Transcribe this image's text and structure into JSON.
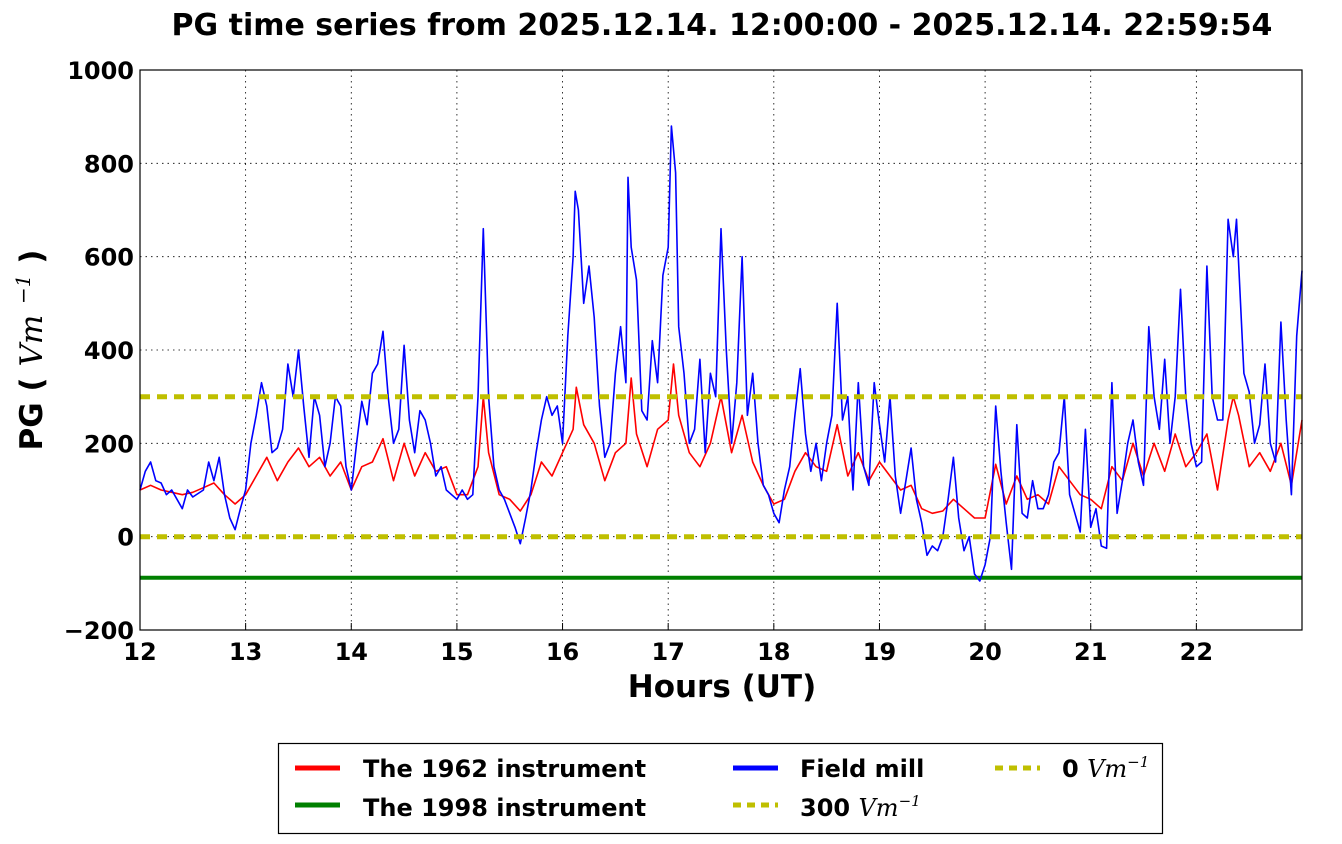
{
  "chart_data": {
    "type": "line",
    "title": "PG time series from 2025.12.14. 12:00:00 - 2025.12.14. 22:59:54",
    "xlabel": "Hours (UT)",
    "ylabel_text": "PG (",
    "ylabel_unit": "Vm",
    "ylabel_exp": "−1",
    "ylabel_close": ")",
    "xlim": [
      12,
      23
    ],
    "ylim": [
      -200,
      1000
    ],
    "xticks": [
      "12",
      "13",
      "14",
      "15",
      "16",
      "17",
      "18",
      "19",
      "20",
      "21",
      "22"
    ],
    "yticks": [
      "−200",
      "0",
      "200",
      "400",
      "600",
      "800",
      "1000"
    ],
    "grid": true,
    "legend_placement": "bottom-outside",
    "series": [
      {
        "name": "The 1962 instrument",
        "color": "#ff0000",
        "x": [
          12.0,
          12.1,
          12.2,
          12.3,
          12.4,
          12.5,
          12.6,
          12.7,
          12.8,
          12.9,
          13.0,
          13.1,
          13.2,
          13.3,
          13.4,
          13.5,
          13.6,
          13.7,
          13.8,
          13.9,
          14.0,
          14.1,
          14.2,
          14.3,
          14.4,
          14.5,
          14.6,
          14.7,
          14.8,
          14.9,
          15.0,
          15.1,
          15.2,
          15.25,
          15.3,
          15.4,
          15.5,
          15.6,
          15.7,
          15.8,
          15.9,
          16.0,
          16.1,
          16.13,
          16.2,
          16.3,
          16.4,
          16.5,
          16.6,
          16.65,
          16.7,
          16.8,
          16.9,
          17.0,
          17.05,
          17.1,
          17.2,
          17.3,
          17.4,
          17.5,
          17.6,
          17.7,
          17.8,
          17.9,
          18.0,
          18.1,
          18.2,
          18.3,
          18.4,
          18.5,
          18.6,
          18.7,
          18.8,
          18.9,
          19.0,
          19.1,
          19.2,
          19.3,
          19.4,
          19.5,
          19.6,
          19.7,
          19.8,
          19.9,
          20.0,
          20.1,
          20.2,
          20.3,
          20.4,
          20.5,
          20.6,
          20.7,
          20.8,
          20.9,
          21.0,
          21.1,
          21.2,
          21.3,
          21.4,
          21.5,
          21.6,
          21.7,
          21.8,
          21.9,
          22.0,
          22.1,
          22.2,
          22.3,
          22.35,
          22.4,
          22.5,
          22.6,
          22.7,
          22.8,
          22.9,
          23.0
        ],
        "y": [
          100,
          110,
          100,
          95,
          90,
          95,
          105,
          115,
          90,
          70,
          90,
          130,
          170,
          120,
          160,
          190,
          150,
          170,
          130,
          160,
          100,
          150,
          160,
          210,
          120,
          200,
          130,
          180,
          140,
          150,
          90,
          90,
          150,
          300,
          180,
          90,
          80,
          55,
          90,
          160,
          130,
          180,
          230,
          320,
          240,
          200,
          120,
          180,
          200,
          340,
          220,
          150,
          230,
          250,
          370,
          260,
          180,
          150,
          200,
          300,
          180,
          260,
          160,
          110,
          70,
          80,
          140,
          180,
          150,
          140,
          240,
          130,
          180,
          120,
          160,
          130,
          100,
          110,
          60,
          50,
          55,
          80,
          60,
          40,
          40,
          155,
          70,
          130,
          80,
          90,
          70,
          150,
          120,
          90,
          80,
          60,
          150,
          120,
          200,
          130,
          200,
          140,
          220,
          150,
          180,
          220,
          100,
          250,
          300,
          260,
          150,
          180,
          140,
          200,
          110,
          250
        ]
      },
      {
        "name": "The 1998 instrument",
        "color": "#008000",
        "x": [
          12.0,
          23.0
        ],
        "y": [
          -88,
          -88
        ]
      },
      {
        "name": "Field mill",
        "color": "#0000ff",
        "x": [
          12.0,
          12.05,
          12.1,
          12.15,
          12.2,
          12.25,
          12.3,
          12.35,
          12.4,
          12.45,
          12.5,
          12.6,
          12.65,
          12.7,
          12.75,
          12.8,
          12.85,
          12.9,
          12.95,
          13.0,
          13.05,
          13.1,
          13.15,
          13.2,
          13.25,
          13.3,
          13.35,
          13.4,
          13.45,
          13.5,
          13.55,
          13.6,
          13.65,
          13.7,
          13.75,
          13.8,
          13.85,
          13.9,
          13.95,
          14.0,
          14.05,
          14.1,
          14.15,
          14.2,
          14.25,
          14.3,
          14.35,
          14.4,
          14.45,
          14.5,
          14.55,
          14.6,
          14.65,
          14.7,
          14.75,
          14.8,
          14.85,
          14.9,
          14.95,
          15.0,
          15.05,
          15.1,
          15.15,
          15.2,
          15.25,
          15.3,
          15.35,
          15.4,
          15.45,
          15.5,
          15.55,
          15.6,
          15.65,
          15.7,
          15.75,
          15.8,
          15.85,
          15.9,
          15.95,
          16.0,
          16.05,
          16.1,
          16.12,
          16.15,
          16.2,
          16.25,
          16.3,
          16.35,
          16.4,
          16.45,
          16.5,
          16.55,
          16.6,
          16.62,
          16.65,
          16.7,
          16.75,
          16.8,
          16.85,
          16.9,
          16.95,
          17.0,
          17.03,
          17.07,
          17.1,
          17.15,
          17.2,
          17.25,
          17.3,
          17.35,
          17.4,
          17.45,
          17.5,
          17.55,
          17.6,
          17.65,
          17.7,
          17.75,
          17.8,
          17.85,
          17.9,
          17.95,
          18.0,
          18.05,
          18.1,
          18.15,
          18.2,
          18.25,
          18.3,
          18.35,
          18.4,
          18.45,
          18.5,
          18.55,
          18.6,
          18.65,
          18.7,
          18.75,
          18.8,
          18.85,
          18.9,
          18.95,
          19.0,
          19.05,
          19.1,
          19.15,
          19.2,
          19.25,
          19.3,
          19.35,
          19.4,
          19.45,
          19.5,
          19.55,
          19.6,
          19.65,
          19.7,
          19.75,
          19.8,
          19.85,
          19.9,
          19.95,
          20.0,
          20.05,
          20.1,
          20.15,
          20.2,
          20.25,
          20.3,
          20.35,
          20.4,
          20.45,
          20.5,
          20.55,
          20.6,
          20.65,
          20.7,
          20.75,
          20.8,
          20.85,
          20.9,
          20.95,
          21.0,
          21.05,
          21.1,
          21.15,
          21.2,
          21.25,
          21.3,
          21.35,
          21.4,
          21.45,
          21.5,
          21.55,
          21.6,
          21.65,
          21.7,
          21.75,
          21.8,
          21.85,
          21.9,
          21.95,
          22.0,
          22.05,
          22.1,
          22.15,
          22.2,
          22.25,
          22.3,
          22.35,
          22.38,
          22.45,
          22.5,
          22.55,
          22.6,
          22.65,
          22.7,
          22.75,
          22.8,
          22.85,
          22.9,
          22.95,
          23.0
        ],
        "y": [
          100,
          140,
          160,
          120,
          115,
          90,
          100,
          80,
          60,
          100,
          85,
          100,
          160,
          120,
          170,
          90,
          40,
          15,
          60,
          100,
          200,
          260,
          330,
          280,
          180,
          190,
          230,
          370,
          300,
          400,
          280,
          170,
          300,
          260,
          150,
          200,
          300,
          280,
          150,
          100,
          200,
          290,
          240,
          350,
          370,
          440,
          300,
          200,
          230,
          410,
          250,
          180,
          270,
          250,
          200,
          130,
          150,
          100,
          90,
          80,
          100,
          80,
          90,
          300,
          660,
          300,
          150,
          100,
          80,
          50,
          20,
          -15,
          40,
          100,
          180,
          250,
          300,
          260,
          280,
          200,
          430,
          600,
          740,
          700,
          500,
          580,
          470,
          280,
          170,
          200,
          350,
          450,
          330,
          770,
          620,
          550,
          270,
          250,
          420,
          330,
          560,
          620,
          880,
          780,
          450,
          350,
          200,
          230,
          380,
          180,
          350,
          300,
          660,
          400,
          200,
          330,
          600,
          260,
          350,
          200,
          110,
          90,
          50,
          30,
          100,
          150,
          260,
          360,
          220,
          140,
          200,
          120,
          200,
          260,
          500,
          250,
          300,
          100,
          330,
          150,
          110,
          330,
          240,
          160,
          300,
          130,
          50,
          120,
          190,
          80,
          30,
          -40,
          -20,
          -30,
          0,
          80,
          170,
          40,
          -30,
          0,
          -80,
          -95,
          -60,
          0,
          280,
          140,
          30,
          -70,
          240,
          50,
          40,
          120,
          60,
          60,
          90,
          160,
          180,
          300,
          90,
          50,
          10,
          230,
          20,
          60,
          -20,
          -25,
          330,
          50,
          120,
          200,
          250,
          160,
          110,
          450,
          300,
          230,
          380,
          200,
          300,
          530,
          300,
          200,
          150,
          160,
          580,
          300,
          250,
          250,
          680,
          600,
          680,
          350,
          310,
          200,
          240,
          370,
          200,
          160,
          460,
          250,
          90,
          430,
          570
        ]
      },
      {
        "name": "300 Vm−1",
        "label_num": "300",
        "label_unit": "Vm",
        "label_exp": "−1",
        "color": "#bfbf00",
        "x": [
          12.0,
          23.0
        ],
        "y": [
          300,
          300
        ]
      },
      {
        "name": "0 Vm−1",
        "label_num": "0",
        "label_unit": "Vm",
        "label_exp": "−1",
        "color": "#bfbf00",
        "x": [
          12.0,
          23.0
        ],
        "y": [
          0,
          0
        ]
      }
    ]
  }
}
